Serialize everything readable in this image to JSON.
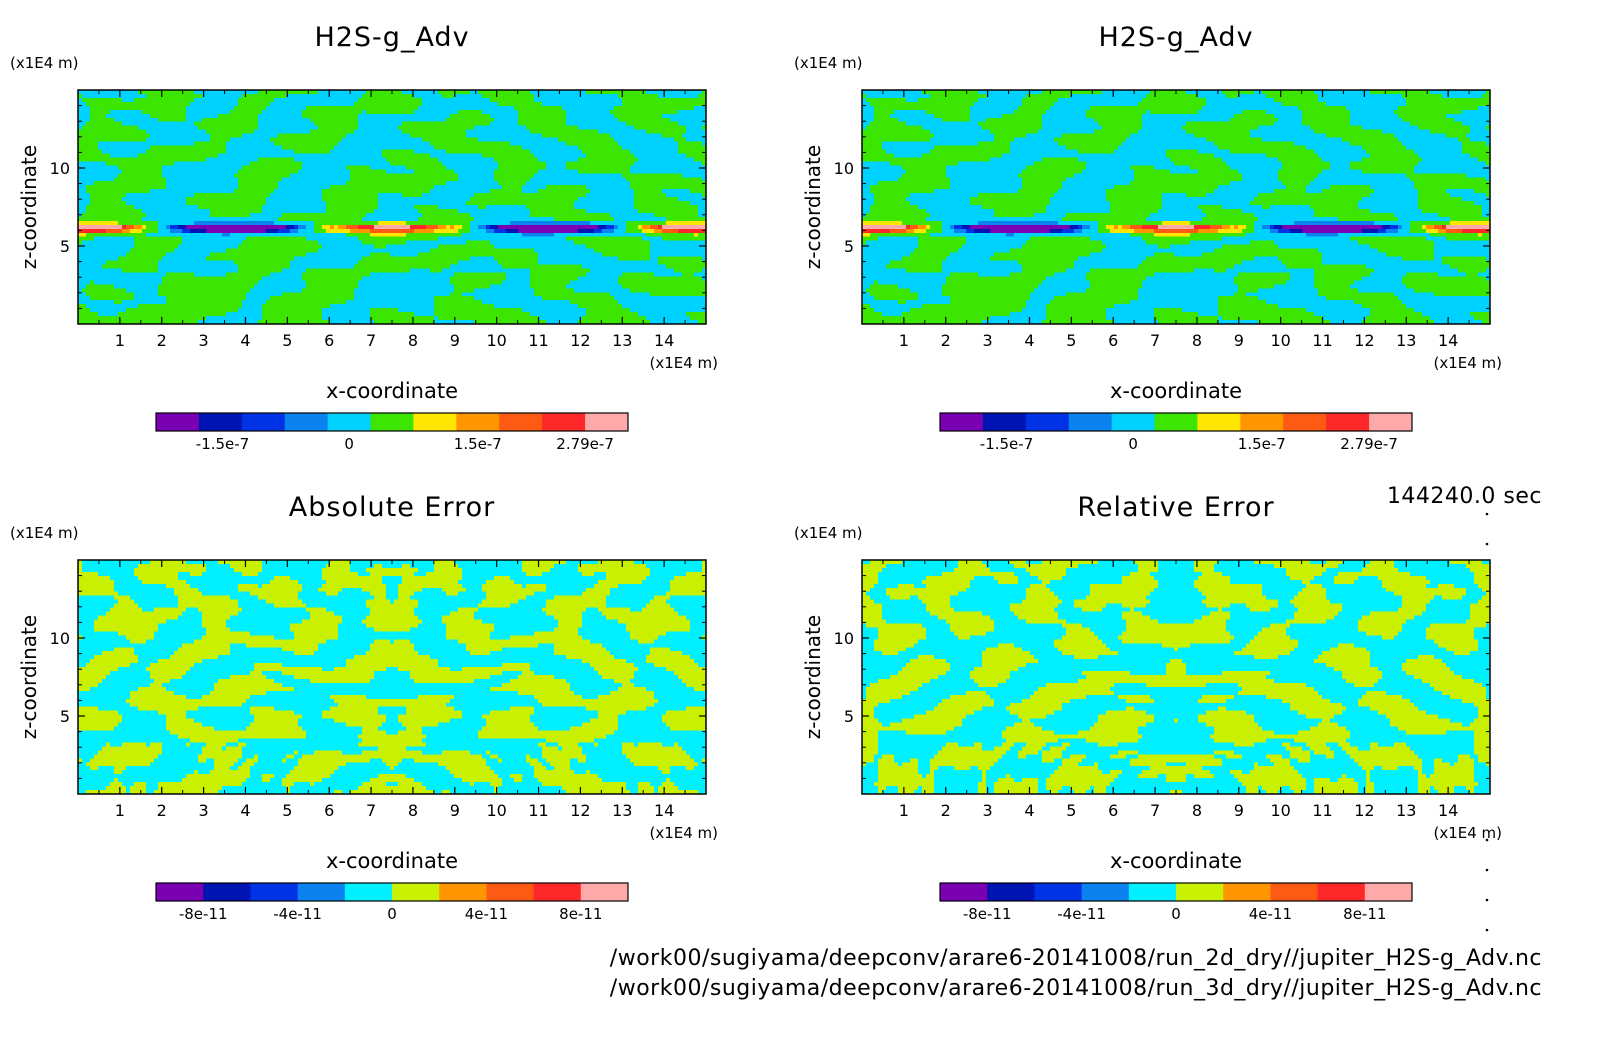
{
  "chart_data": [
    {
      "type": "heatmap",
      "title": "H2S-g_Adv",
      "xlabel": "x-coordinate",
      "ylabel": "z-coordinate",
      "x_unit": "(x1E4 m)",
      "y_unit": "(x1E4 m)",
      "x_ticks": [
        1,
        2,
        3,
        4,
        5,
        6,
        7,
        8,
        9,
        10,
        11,
        12,
        13,
        14
      ],
      "y_ticks": [
        5,
        10
      ],
      "xlim": [
        0,
        15
      ],
      "ylim": [
        0,
        15
      ],
      "colorbar": {
        "colors": [
          "#7a00b4",
          "#0014b4",
          "#0032e6",
          "#0a82f0",
          "#00d2ff",
          "#3ce600",
          "#ffe600",
          "#ff9600",
          "#ff5a14",
          "#ff2828",
          "#ffaaaa"
        ],
        "tick_labels": [
          "-1.5e-7",
          "0",
          "1.5e-7",
          "2.79e-7"
        ]
      }
    },
    {
      "type": "heatmap",
      "title": "H2S-g_Adv",
      "xlabel": "x-coordinate",
      "ylabel": "z-coordinate",
      "x_unit": "(x1E4 m)",
      "y_unit": "(x1E4 m)",
      "x_ticks": [
        1,
        2,
        3,
        4,
        5,
        6,
        7,
        8,
        9,
        10,
        11,
        12,
        13,
        14
      ],
      "y_ticks": [
        5,
        10
      ],
      "xlim": [
        0,
        15
      ],
      "ylim": [
        0,
        15
      ],
      "colorbar": {
        "colors": [
          "#7a00b4",
          "#0014b4",
          "#0032e6",
          "#0a82f0",
          "#00d2ff",
          "#3ce600",
          "#ffe600",
          "#ff9600",
          "#ff5a14",
          "#ff2828",
          "#ffaaaa"
        ],
        "tick_labels": [
          "-1.5e-7",
          "0",
          "1.5e-7",
          "2.79e-7"
        ]
      }
    },
    {
      "type": "heatmap",
      "title": "Absolute Error",
      "xlabel": "x-coordinate",
      "ylabel": "z-coordinate",
      "x_unit": "(x1E4 m)",
      "y_unit": "(x1E4 m)",
      "x_ticks": [
        1,
        2,
        3,
        4,
        5,
        6,
        7,
        8,
        9,
        10,
        11,
        12,
        13,
        14
      ],
      "y_ticks": [
        5,
        10
      ],
      "xlim": [
        0,
        15
      ],
      "ylim": [
        0,
        15
      ],
      "colorbar": {
        "colors": [
          "#7a00b4",
          "#0014b4",
          "#0032e6",
          "#0a82f0",
          "#00f0ff",
          "#c8f000",
          "#ff9600",
          "#ff5a14",
          "#ff2828",
          "#ffaaaa"
        ],
        "tick_labels": [
          "-8e-11",
          "-4e-11",
          "0",
          "4e-11",
          "8e-11"
        ]
      }
    },
    {
      "type": "heatmap",
      "title": "Relative Error",
      "xlabel": "x-coordinate",
      "ylabel": "z-coordinate",
      "x_unit": "(x1E4 m)",
      "y_unit": "(x1E4 m)",
      "x_ticks": [
        1,
        2,
        3,
        4,
        5,
        6,
        7,
        8,
        9,
        10,
        11,
        12,
        13,
        14
      ],
      "y_ticks": [
        5,
        10
      ],
      "xlim": [
        0,
        15
      ],
      "ylim": [
        0,
        15
      ],
      "colorbar": {
        "colors": [
          "#7a00b4",
          "#0014b4",
          "#0032e6",
          "#0a82f0",
          "#00f0ff",
          "#c8f000",
          "#ff9600",
          "#ff5a14",
          "#ff2828",
          "#ffaaaa"
        ],
        "tick_labels": [
          "-8e-11",
          "-4e-11",
          "0",
          "4e-11",
          "8e-11"
        ]
      }
    }
  ],
  "time_label": "144240.0 sec",
  "file_paths": [
    "/work00/sugiyama/deepconv/arare6-20141008/run_2d_dry//jupiter_H2S-g_Adv.nc",
    "/work00/sugiyama/deepconv/arare6-20141008/run_3d_dry//jupiter_H2S-g_Adv.nc"
  ]
}
